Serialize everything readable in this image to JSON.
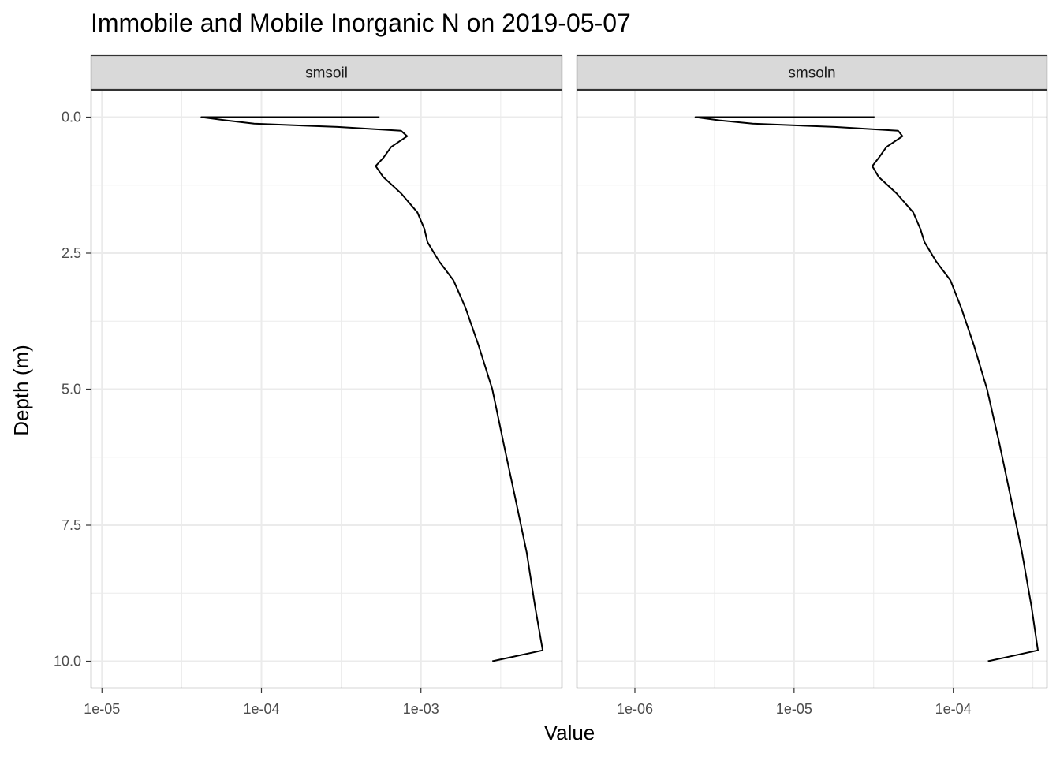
{
  "chart_data": {
    "type": "line",
    "title": "Immobile and Mobile Inorganic N on 2019-05-07",
    "xlabel": "Value",
    "ylabel": "Depth (m)",
    "x_scale": "log10",
    "y_reversed": true,
    "ylim": [
      10.5,
      -0.5
    ],
    "y_ticks": [
      0.0,
      2.5,
      5.0,
      7.5,
      10.0
    ],
    "y_tick_labels": [
      "0.0",
      "2.5",
      "5.0",
      "7.5",
      "10.0"
    ],
    "grid": true,
    "colors": {
      "line": "#000000",
      "strip": "#d9d9d9",
      "grid": "#ebebeb",
      "border": "#333333"
    },
    "panels": [
      {
        "strip": "smsoil",
        "xlim": [
          8.5e-06,
          0.0077
        ],
        "x_ticks": [
          1e-05,
          0.0001,
          0.001
        ],
        "x_tick_labels": [
          "1e-05",
          "1e-04",
          "1e-03"
        ],
        "series": [
          {
            "x": [
              0.00055,
              4.2e-05,
              6e-05,
              9e-05,
              0.0003,
              0.00075,
              0.00082,
              0.00065,
              0.00058,
              0.00052,
              0.00058,
              0.00075,
              0.00095,
              0.00105,
              0.0011,
              0.0013,
              0.0016,
              0.0019,
              0.0023,
              0.0028,
              0.0033,
              0.0039,
              0.0046,
              0.0052,
              0.0058,
              0.0028
            ],
            "y": [
              0.0,
              0.0,
              0.06,
              0.12,
              0.18,
              0.25,
              0.35,
              0.55,
              0.75,
              0.9,
              1.1,
              1.4,
              1.75,
              2.05,
              2.3,
              2.65,
              3.0,
              3.5,
              4.2,
              5.0,
              6.0,
              7.0,
              8.0,
              9.0,
              9.8,
              10.0
            ]
          }
        ]
      },
      {
        "strip": "smsoln",
        "xlim": [
          4.3e-07,
          0.00039
        ],
        "x_ticks": [
          1e-06,
          1e-05,
          0.0001
        ],
        "x_tick_labels": [
          "1e-06",
          "1e-05",
          "1e-04"
        ],
        "series": [
          {
            "x": [
              3.2e-05,
              2.4e-06,
              3.4e-06,
              5.5e-06,
              1.8e-05,
              4.5e-05,
              4.8e-05,
              3.8e-05,
              3.4e-05,
              3.1e-05,
              3.4e-05,
              4.4e-05,
              5.6e-05,
              6.2e-05,
              6.6e-05,
              7.8e-05,
              9.6e-05,
              0.000112,
              0.000135,
              0.000163,
              0.000195,
              0.00023,
              0.00027,
              0.00031,
              0.00034,
              0.000165
            ],
            "y": [
              0.0,
              0.0,
              0.06,
              0.12,
              0.18,
              0.25,
              0.35,
              0.55,
              0.75,
              0.9,
              1.1,
              1.4,
              1.75,
              2.05,
              2.3,
              2.65,
              3.0,
              3.5,
              4.2,
              5.0,
              6.0,
              7.0,
              8.0,
              9.0,
              9.8,
              10.0
            ]
          }
        ]
      }
    ]
  }
}
